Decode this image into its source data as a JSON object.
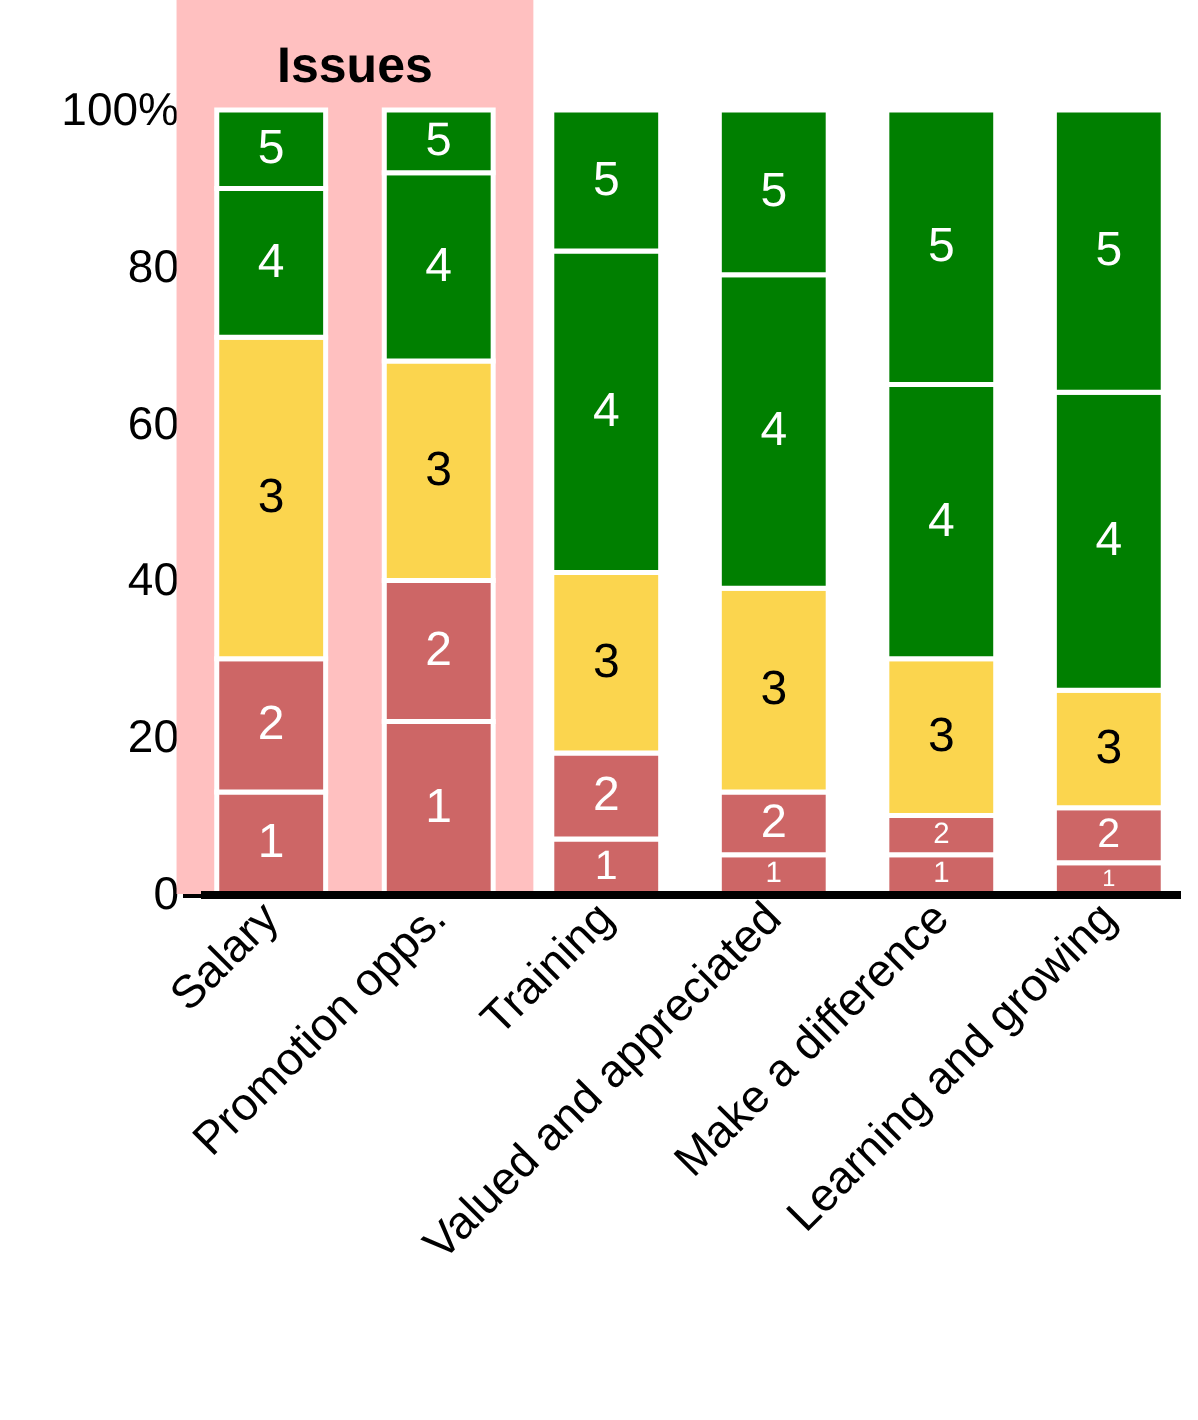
{
  "chart_data": {
    "type": "bar",
    "stacked": true,
    "categories": [
      "Salary",
      "Promotion opps.",
      "Training",
      "Valued and appreciated",
      "Make a difference",
      "Learning and growing"
    ],
    "series": [
      {
        "name": "1",
        "color": "#cd6666",
        "values": [
          13,
          22,
          7,
          5,
          5,
          4
        ]
      },
      {
        "name": "2",
        "color": "#cd6666",
        "values": [
          17,
          18,
          11,
          8,
          5,
          7
        ]
      },
      {
        "name": "3",
        "color": "#fbd54e",
        "values": [
          41,
          28,
          23,
          26,
          20,
          15
        ]
      },
      {
        "name": "4",
        "color": "#007f00",
        "values": [
          19,
          24,
          41,
          40,
          35,
          38
        ]
      },
      {
        "name": "5",
        "color": "#007f00",
        "values": [
          10,
          8,
          18,
          21,
          35,
          36
        ]
      }
    ],
    "ylim": [
      0,
      100
    ],
    "yticks": [
      0,
      20,
      40,
      60,
      80,
      {
        "value": 100,
        "label": "100%"
      }
    ],
    "bands": [
      {
        "axis": "x",
        "from": "Salary",
        "to": "Promotion opps.",
        "label": "Issues",
        "color": "#ffc0c0"
      }
    ],
    "grid": false
  }
}
